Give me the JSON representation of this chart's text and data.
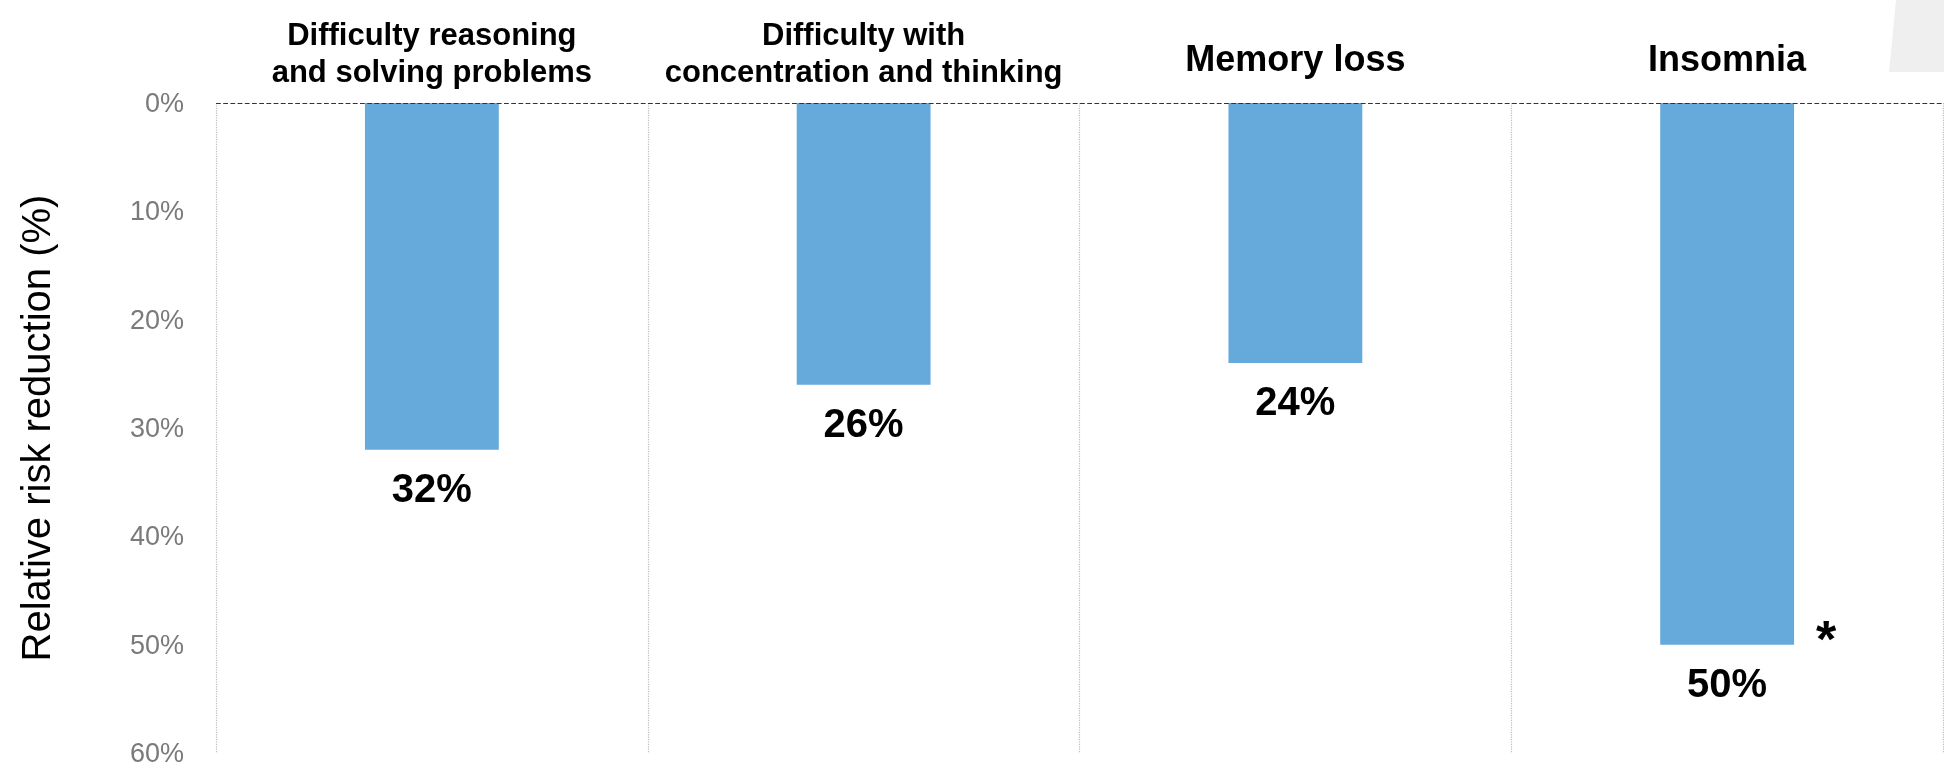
{
  "chart_data": {
    "type": "bar",
    "categories": [
      "Difficulty reasoning\nand solving problems",
      "Difficulty with\nconcentration and thinking",
      "Memory loss",
      "Insomnia"
    ],
    "values": [
      32,
      26,
      24,
      50
    ],
    "color": "#66aadc",
    "value_labels": [
      "32%",
      "26%",
      "24%",
      "50%"
    ],
    "ylabel": "Relative risk reduction (%)",
    "ylim": [
      60,
      0
    ],
    "yticks": [
      {
        "value": 0,
        "label": "0%"
      },
      {
        "value": 10,
        "label": "10%"
      },
      {
        "value": 20,
        "label": "20%"
      },
      {
        "value": 30,
        "label": "30%"
      },
      {
        "value": 40,
        "label": "40%"
      },
      {
        "value": 50,
        "label": "50%"
      },
      {
        "value": 60,
        "label": "60%"
      }
    ],
    "grid": "x",
    "ref_lines": [
      {
        "axis": "y",
        "value": 0,
        "color": "#333333",
        "line_style": "dashed"
      }
    ],
    "annotations": [
      {
        "text": "*",
        "x": "Insomnia",
        "y": 50
      }
    ]
  }
}
